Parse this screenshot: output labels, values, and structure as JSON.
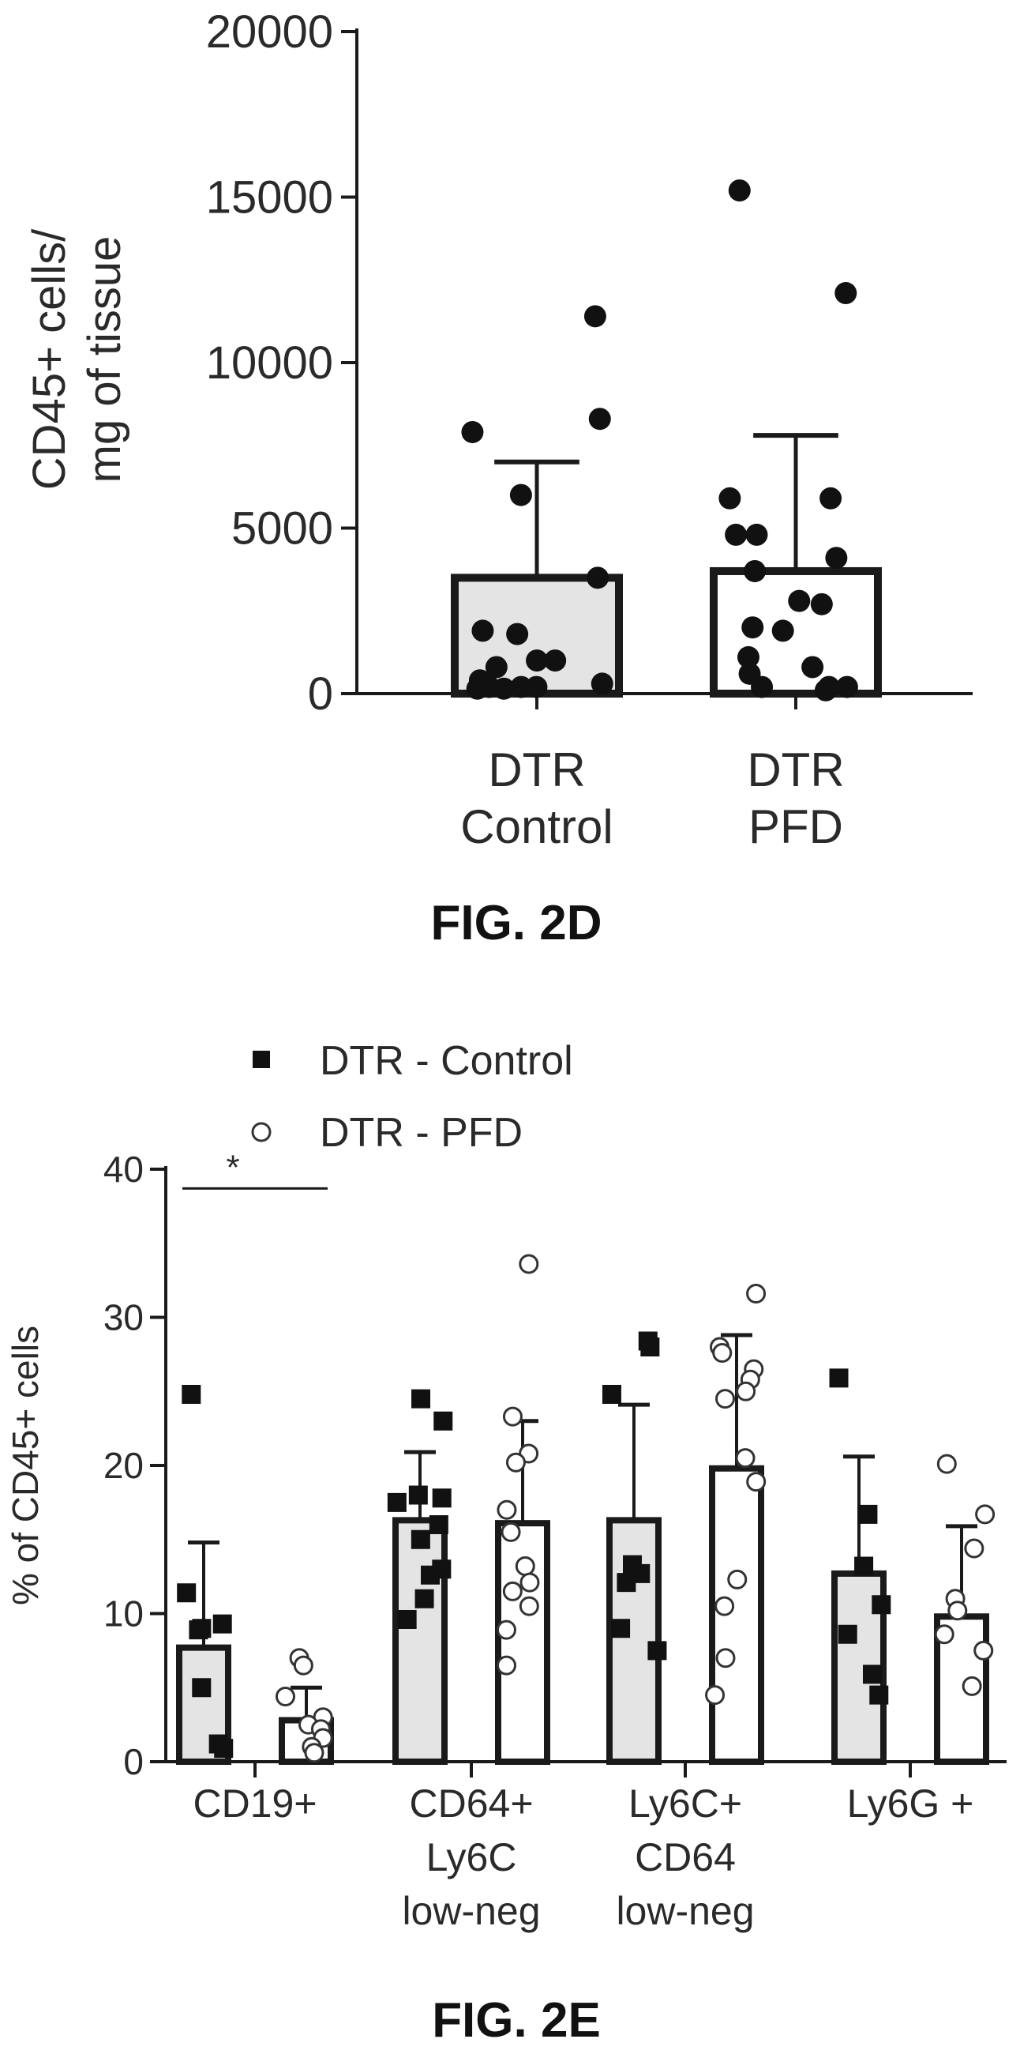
{
  "chart_data": [
    {
      "type": "bar",
      "caption": "FIG. 2D",
      "ylabel": [
        "CD45+ cells/",
        "mg of tissue"
      ],
      "ylim": [
        0,
        20000
      ],
      "yticks": [
        0,
        5000,
        10000,
        15000,
        20000
      ],
      "yticks_labels": [
        "0",
        "5000",
        "10000",
        "15000",
        "20000"
      ],
      "categories": [
        [
          "DTR",
          "Control"
        ],
        [
          "DTR",
          "PFD"
        ]
      ],
      "bars": [
        {
          "mean": 3500,
          "error_upper": 7000,
          "fill": "#e4e4e4",
          "points": [
            11400,
            8300,
            7900,
            6000,
            3500,
            1900,
            1800,
            1000,
            1000,
            800,
            400,
            300,
            200,
            200,
            200,
            150,
            150
          ]
        },
        {
          "mean": 3700,
          "error_upper": 7800,
          "fill": "#ffffff",
          "points": [
            15200,
            12100,
            5900,
            5900,
            4800,
            4800,
            4100,
            3700,
            2800,
            2700,
            2000,
            1900,
            1100,
            800,
            600,
            200,
            200,
            200,
            100
          ]
        }
      ],
      "grid": false
    },
    {
      "type": "bar",
      "caption": "FIG. 2E",
      "ylabel": "% of CD45+ cells",
      "ylim": [
        0,
        40
      ],
      "yticks": [
        0,
        10,
        20,
        30,
        40
      ],
      "yticks_labels": [
        "0",
        "10",
        "20",
        "30",
        "40"
      ],
      "legend": {
        "position": "top-left",
        "entries": [
          {
            "label": "DTR - Control",
            "marker": "filled-square"
          },
          {
            "label": "DTR - PFD",
            "marker": "open-circle"
          }
        ]
      },
      "categories": [
        [
          "CD19+"
        ],
        [
          "CD64+",
          "Ly6C",
          "low-neg"
        ],
        [
          "Ly6C+",
          "CD64",
          "low-neg"
        ],
        [
          "Ly6G +"
        ]
      ],
      "significance": [
        {
          "group": 0,
          "label": "*",
          "y": 38.7
        }
      ],
      "series": [
        {
          "name": "DTR - Control",
          "fill": "#e4e4e4",
          "means": [
            7.7,
            16.3,
            16.3,
            12.7
          ],
          "error_upper": [
            14.8,
            20.9,
            24.1,
            20.6
          ],
          "points": [
            [
              24.8,
              11.4,
              9.3,
              9.0,
              8.9,
              5.0,
              1.2,
              0.9
            ],
            [
              24.5,
              23.0,
              18.0,
              17.8,
              17.5,
              16.0,
              15.0,
              13.0,
              12.6,
              11.0,
              9.6
            ],
            [
              28.4,
              28.0,
              24.8,
              13.3,
              12.7,
              12.1,
              9.0,
              7.5
            ],
            [
              25.9,
              16.7,
              13.2,
              10.6,
              8.6,
              5.9,
              4.5
            ]
          ]
        },
        {
          "name": "DTR - PFD",
          "fill": "#ffffff",
          "means": [
            2.8,
            16.1,
            19.8,
            9.8
          ],
          "error_upper": [
            5.0,
            23.0,
            28.8,
            15.9
          ],
          "points": [
            [
              7.0,
              6.5,
              4.4,
              3.0,
              2.5,
              2.2,
              1.6,
              1.0,
              0.6
            ],
            [
              33.6,
              23.3,
              20.8,
              20.2,
              17.0,
              15.5,
              13.2,
              12.1,
              11.5,
              10.5,
              8.9,
              6.5
            ],
            [
              31.6,
              28.0,
              27.6,
              26.5,
              25.8,
              25.0,
              24.5,
              20.5,
              18.9,
              12.3,
              10.5,
              7.0,
              4.5
            ],
            [
              20.1,
              16.7,
              14.4,
              11.0,
              10.2,
              8.6,
              7.5,
              5.1
            ]
          ]
        }
      ],
      "grid": false
    }
  ]
}
